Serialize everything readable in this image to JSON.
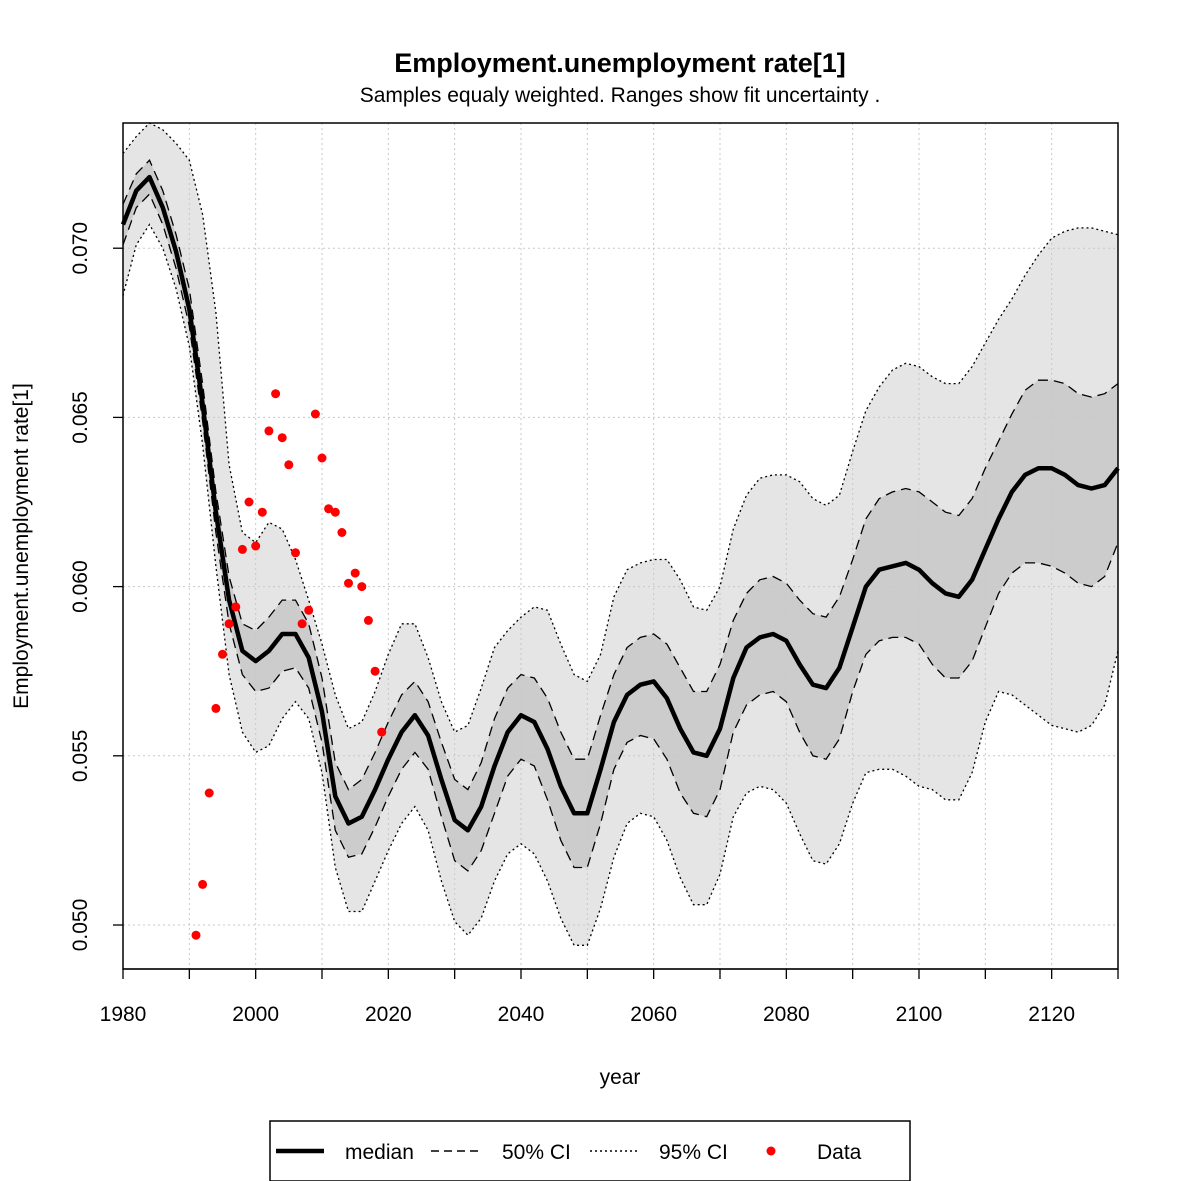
{
  "chart_data": {
    "type": "line",
    "title": "Employment.unemployment rate[1]",
    "subtitle": "Samples equaly weighted. Ranges show  fit uncertainty .",
    "xlabel": "year",
    "ylabel": "Employment.unemployment rate[1]",
    "xlim": [
      1980,
      2130
    ],
    "ylim": [
      0.0487,
      0.0737
    ],
    "xticks": [
      "1980",
      "2000",
      "2020",
      "2040",
      "2060",
      "2080",
      "2100",
      "2120"
    ],
    "yticks": [
      "0.050",
      "0.055",
      "0.060",
      "0.065",
      "0.070"
    ],
    "grid": true,
    "legend_position": "bottom",
    "x": [
      1980,
      1982,
      1984,
      1986,
      1988,
      1990,
      1992,
      1994,
      1996,
      1998,
      2000,
      2002,
      2004,
      2006,
      2008,
      2010,
      2012,
      2014,
      2016,
      2018,
      2020,
      2022,
      2024,
      2026,
      2028,
      2030,
      2032,
      2034,
      2036,
      2038,
      2040,
      2042,
      2044,
      2046,
      2048,
      2050,
      2052,
      2054,
      2056,
      2058,
      2060,
      2062,
      2064,
      2066,
      2068,
      2070,
      2072,
      2074,
      2076,
      2078,
      2080,
      2082,
      2084,
      2086,
      2088,
      2090,
      2092,
      2094,
      2096,
      2098,
      2100,
      2102,
      2104,
      2106,
      2108,
      2110,
      2112,
      2114,
      2116,
      2118,
      2120,
      2122,
      2124,
      2126,
      2128,
      2130
    ],
    "series": [
      {
        "name": "median",
        "values": [
          0.0707,
          0.0717,
          0.0721,
          0.0712,
          0.0699,
          0.0682,
          0.0654,
          0.0622,
          0.0596,
          0.0581,
          0.0578,
          0.0581,
          0.0586,
          0.0586,
          0.0579,
          0.0563,
          0.0538,
          0.053,
          0.0532,
          0.054,
          0.0549,
          0.0557,
          0.0562,
          0.0556,
          0.0543,
          0.0531,
          0.0528,
          0.0535,
          0.0547,
          0.0557,
          0.0562,
          0.056,
          0.0552,
          0.0541,
          0.0533,
          0.0533,
          0.0546,
          0.056,
          0.0568,
          0.0571,
          0.0572,
          0.0567,
          0.0558,
          0.0551,
          0.055,
          0.0558,
          0.0573,
          0.0582,
          0.0585,
          0.0586,
          0.0584,
          0.0577,
          0.0571,
          0.057,
          0.0576,
          0.0588,
          0.06,
          0.0605,
          0.0606,
          0.0607,
          0.0605,
          0.0601,
          0.0598,
          0.0597,
          0.0602,
          0.0611,
          0.062,
          0.0628,
          0.0633,
          0.0635,
          0.0635,
          0.0633,
          0.063,
          0.0629,
          0.063,
          0.0635
        ]
      },
      {
        "name": "50% CI lower",
        "values": [
          0.0701,
          0.0712,
          0.0716,
          0.0707,
          0.0694,
          0.0677,
          0.0649,
          0.0616,
          0.0589,
          0.0574,
          0.0569,
          0.057,
          0.0575,
          0.0576,
          0.057,
          0.0554,
          0.0528,
          0.052,
          0.0521,
          0.0529,
          0.0538,
          0.0546,
          0.0551,
          0.0546,
          0.0532,
          0.0519,
          0.0516,
          0.0522,
          0.0533,
          0.0544,
          0.0549,
          0.0547,
          0.0537,
          0.0525,
          0.0517,
          0.0517,
          0.053,
          0.0546,
          0.0554,
          0.0556,
          0.0555,
          0.0549,
          0.0539,
          0.0533,
          0.0532,
          0.054,
          0.0557,
          0.0565,
          0.0568,
          0.0569,
          0.0566,
          0.0557,
          0.055,
          0.0549,
          0.0555,
          0.0569,
          0.058,
          0.0584,
          0.0585,
          0.0585,
          0.0583,
          0.0577,
          0.0573,
          0.0573,
          0.0578,
          0.0588,
          0.0598,
          0.0604,
          0.0607,
          0.0607,
          0.0606,
          0.0604,
          0.0601,
          0.06,
          0.0603,
          0.0613
        ]
      },
      {
        "name": "50% CI upper",
        "values": [
          0.0713,
          0.0722,
          0.0726,
          0.0717,
          0.0704,
          0.0688,
          0.066,
          0.0628,
          0.0603,
          0.0589,
          0.0587,
          0.0591,
          0.0596,
          0.0596,
          0.0589,
          0.0573,
          0.0548,
          0.054,
          0.0543,
          0.0551,
          0.056,
          0.0568,
          0.0572,
          0.0566,
          0.0554,
          0.0543,
          0.054,
          0.0548,
          0.0561,
          0.057,
          0.0574,
          0.0573,
          0.0567,
          0.0557,
          0.0549,
          0.0549,
          0.0562,
          0.0574,
          0.0582,
          0.0585,
          0.0586,
          0.0583,
          0.0576,
          0.0569,
          0.0569,
          0.0577,
          0.059,
          0.0598,
          0.0602,
          0.0603,
          0.0601,
          0.0596,
          0.0592,
          0.0591,
          0.0597,
          0.0608,
          0.062,
          0.0626,
          0.0628,
          0.0629,
          0.0628,
          0.0625,
          0.0622,
          0.0621,
          0.0626,
          0.0635,
          0.0643,
          0.0651,
          0.0658,
          0.0661,
          0.0661,
          0.066,
          0.0657,
          0.0656,
          0.0657,
          0.066
        ]
      },
      {
        "name": "95% CI lower",
        "values": [
          0.0686,
          0.0701,
          0.0707,
          0.07,
          0.0688,
          0.0671,
          0.0642,
          0.0606,
          0.0574,
          0.0557,
          0.0551,
          0.0553,
          0.0561,
          0.0566,
          0.0561,
          0.0545,
          0.0517,
          0.0504,
          0.0504,
          0.0513,
          0.0522,
          0.053,
          0.0535,
          0.0528,
          0.0513,
          0.0501,
          0.0497,
          0.0502,
          0.0513,
          0.0521,
          0.0524,
          0.0521,
          0.0513,
          0.0502,
          0.0494,
          0.0494,
          0.0505,
          0.052,
          0.053,
          0.0533,
          0.0532,
          0.0525,
          0.0514,
          0.0506,
          0.0506,
          0.0515,
          0.0532,
          0.0539,
          0.0541,
          0.054,
          0.0536,
          0.0527,
          0.0519,
          0.0518,
          0.0524,
          0.0536,
          0.0545,
          0.0546,
          0.0546,
          0.0544,
          0.0541,
          0.054,
          0.0537,
          0.0537,
          0.0545,
          0.056,
          0.0569,
          0.0568,
          0.0565,
          0.0562,
          0.0559,
          0.0558,
          0.0557,
          0.0559,
          0.0565,
          0.0581
        ]
      },
      {
        "name": "95% CI upper",
        "values": [
          0.0728,
          0.0733,
          0.0737,
          0.0735,
          0.0731,
          0.0726,
          0.071,
          0.0681,
          0.0636,
          0.0616,
          0.0613,
          0.0619,
          0.0617,
          0.0608,
          0.0596,
          0.0583,
          0.0568,
          0.0558,
          0.056,
          0.0569,
          0.058,
          0.0589,
          0.0589,
          0.0579,
          0.0566,
          0.0557,
          0.0559,
          0.057,
          0.0582,
          0.0587,
          0.0591,
          0.0594,
          0.0593,
          0.0583,
          0.0574,
          0.0572,
          0.058,
          0.0597,
          0.0605,
          0.0607,
          0.0608,
          0.0608,
          0.0602,
          0.0594,
          0.0593,
          0.06,
          0.0617,
          0.0627,
          0.0632,
          0.0633,
          0.0633,
          0.0631,
          0.0626,
          0.0624,
          0.0627,
          0.064,
          0.0652,
          0.0659,
          0.0664,
          0.0666,
          0.0665,
          0.0662,
          0.066,
          0.066,
          0.0665,
          0.0672,
          0.0679,
          0.0685,
          0.0692,
          0.0698,
          0.0703,
          0.0705,
          0.0706,
          0.0706,
          0.0705,
          0.0704
        ]
      }
    ],
    "points": {
      "name": "Data",
      "x": [
        1991,
        1992,
        1993,
        1994,
        1995,
        1996,
        1997,
        1998,
        1999,
        2000,
        2001,
        2002,
        2003,
        2004,
        2005,
        2006,
        2007,
        2008,
        2009,
        2010,
        2011,
        2012,
        2013,
        2014,
        2015,
        2016,
        2017,
        2018,
        2019
      ],
      "y": [
        0.0497,
        0.0512,
        0.0539,
        0.0564,
        0.058,
        0.0589,
        0.0594,
        0.0611,
        0.0625,
        0.0612,
        0.0622,
        0.0646,
        0.0657,
        0.0644,
        0.0636,
        0.061,
        0.0589,
        0.0593,
        0.0651,
        0.0638,
        0.0623,
        0.0622,
        0.0616,
        0.0601,
        0.0604,
        0.06,
        0.059,
        0.0575,
        0.0557
      ]
    },
    "legend": [
      {
        "label": "median",
        "style": "solid-thick"
      },
      {
        "label": "50% CI",
        "style": "dashed"
      },
      {
        "label": "95% CI",
        "style": "dotted"
      },
      {
        "label": "Data",
        "style": "point"
      }
    ],
    "colors": {
      "median": "#000000",
      "band50": "#cccccc",
      "band95": "#e5e5e5",
      "data": "#ff0000",
      "grid": "#c8c8c8"
    }
  }
}
